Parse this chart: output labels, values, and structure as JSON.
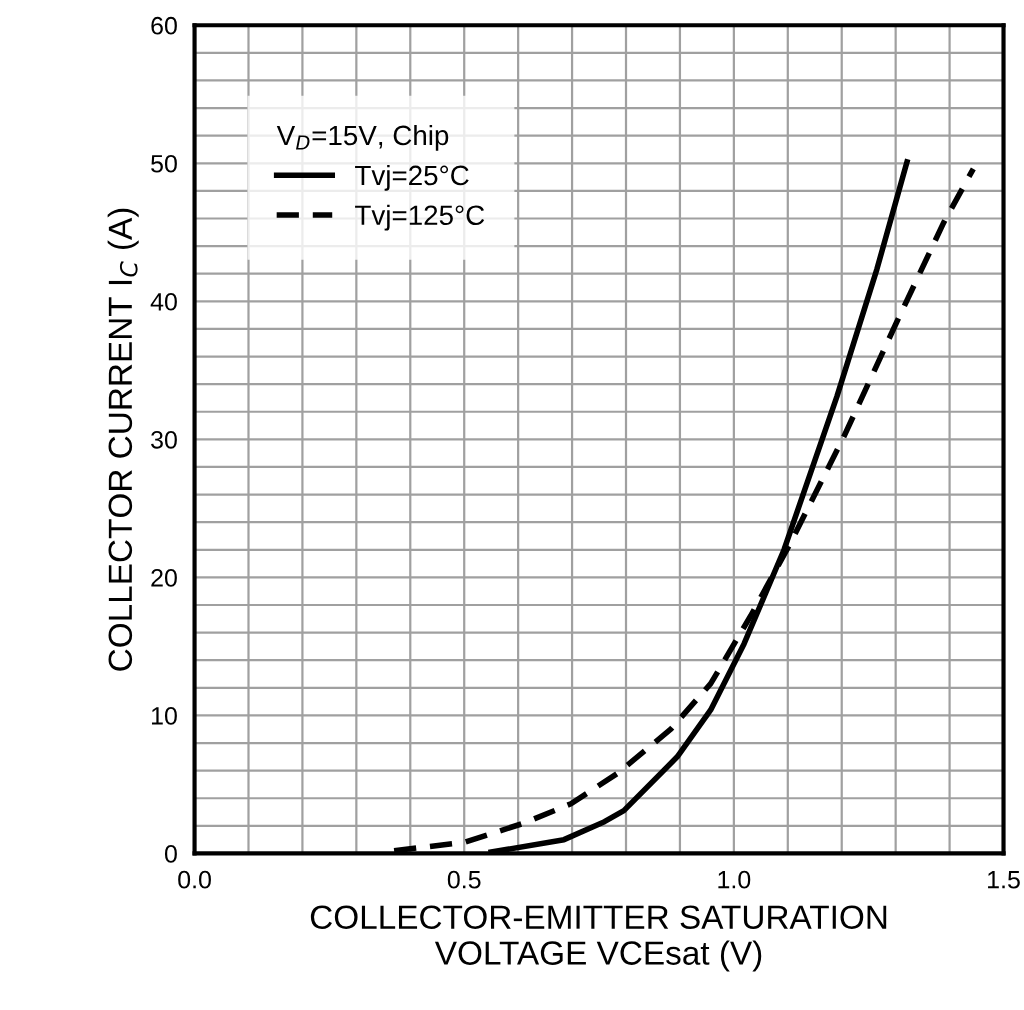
{
  "chart_data": {
    "type": "line",
    "xlabel": "COLLECTOR-EMITTER SATURATION\nVOLTAGE VCEsat (V)",
    "ylabel": "COLLECTOR CURRENT I$_{C}$ (A)",
    "legend_title": "V$_{D}$=15V, Chip",
    "legend": "top left",
    "grid": true,
    "xlim": [
      0,
      1.5
    ],
    "ylim": [
      0,
      60
    ],
    "xticks": [
      {
        "value": 0,
        "label": "0.0"
      },
      {
        "value": 0.1,
        "label": null
      },
      {
        "value": 0.2,
        "label": null
      },
      {
        "value": 0.3,
        "label": null
      },
      {
        "value": 0.4,
        "label": null
      },
      {
        "value": 0.5,
        "label": "0.5"
      },
      {
        "value": 0.6,
        "label": null
      },
      {
        "value": 0.7,
        "label": null
      },
      {
        "value": 0.8,
        "label": null
      },
      {
        "value": 0.9,
        "label": null
      },
      {
        "value": 1.0,
        "label": "1.0"
      },
      {
        "value": 1.1,
        "label": null
      },
      {
        "value": 1.2,
        "label": null
      },
      {
        "value": 1.3,
        "label": null
      },
      {
        "value": 1.4,
        "label": null
      },
      {
        "value": 1.5,
        "label": "1.5"
      }
    ],
    "yticks": [
      0,
      {
        "value": 2,
        "label": null
      },
      {
        "value": 4,
        "label": null
      },
      {
        "value": 6,
        "label": null
      },
      {
        "value": 8,
        "label": null
      },
      10,
      {
        "value": 12,
        "label": null
      },
      {
        "value": 14,
        "label": null
      },
      {
        "value": 16,
        "label": null
      },
      {
        "value": 18,
        "label": null
      },
      20,
      {
        "value": 22,
        "label": null
      },
      {
        "value": 24,
        "label": null
      },
      {
        "value": 26,
        "label": null
      },
      {
        "value": 28,
        "label": null
      },
      30,
      {
        "value": 32,
        "label": null
      },
      {
        "value": 34,
        "label": null
      },
      {
        "value": 36,
        "label": null
      },
      {
        "value": 38,
        "label": null
      },
      40,
      {
        "value": 42,
        "label": null
      },
      {
        "value": 44,
        "label": null
      },
      {
        "value": 46,
        "label": null
      },
      {
        "value": 48,
        "label": null
      },
      50,
      {
        "value": 52,
        "label": null
      },
      {
        "value": 54,
        "label": null
      },
      {
        "value": 56,
        "label": null
      },
      {
        "value": 58,
        "label": null
      },
      60
    ],
    "series": [
      {
        "name": "Tvj=25°C",
        "color": "#000000",
        "line_style": "solid",
        "x": [
          0.55,
          0.685,
          0.76,
          0.796,
          0.895,
          0.957,
          1.019,
          1.093,
          1.191,
          1.265,
          1.321
        ],
        "values": [
          0.1,
          1.0,
          2.3,
          3.1,
          7.0,
          10.4,
          15.2,
          22.0,
          33.1,
          42.3,
          50.1
        ]
      },
      {
        "name": "Tvj=125°C",
        "color": "#000000",
        "line_style": "dashed",
        "x": [
          0.37,
          0.5,
          0.611,
          0.698,
          0.784,
          0.883,
          0.957,
          1.031,
          1.105,
          1.204,
          1.302,
          1.389,
          1.444
        ],
        "values": [
          0.2,
          0.8,
          2.2,
          3.6,
          5.8,
          9.0,
          12.3,
          17.2,
          22.5,
          30.2,
          38.5,
          45.7,
          49.6
        ]
      }
    ]
  }
}
